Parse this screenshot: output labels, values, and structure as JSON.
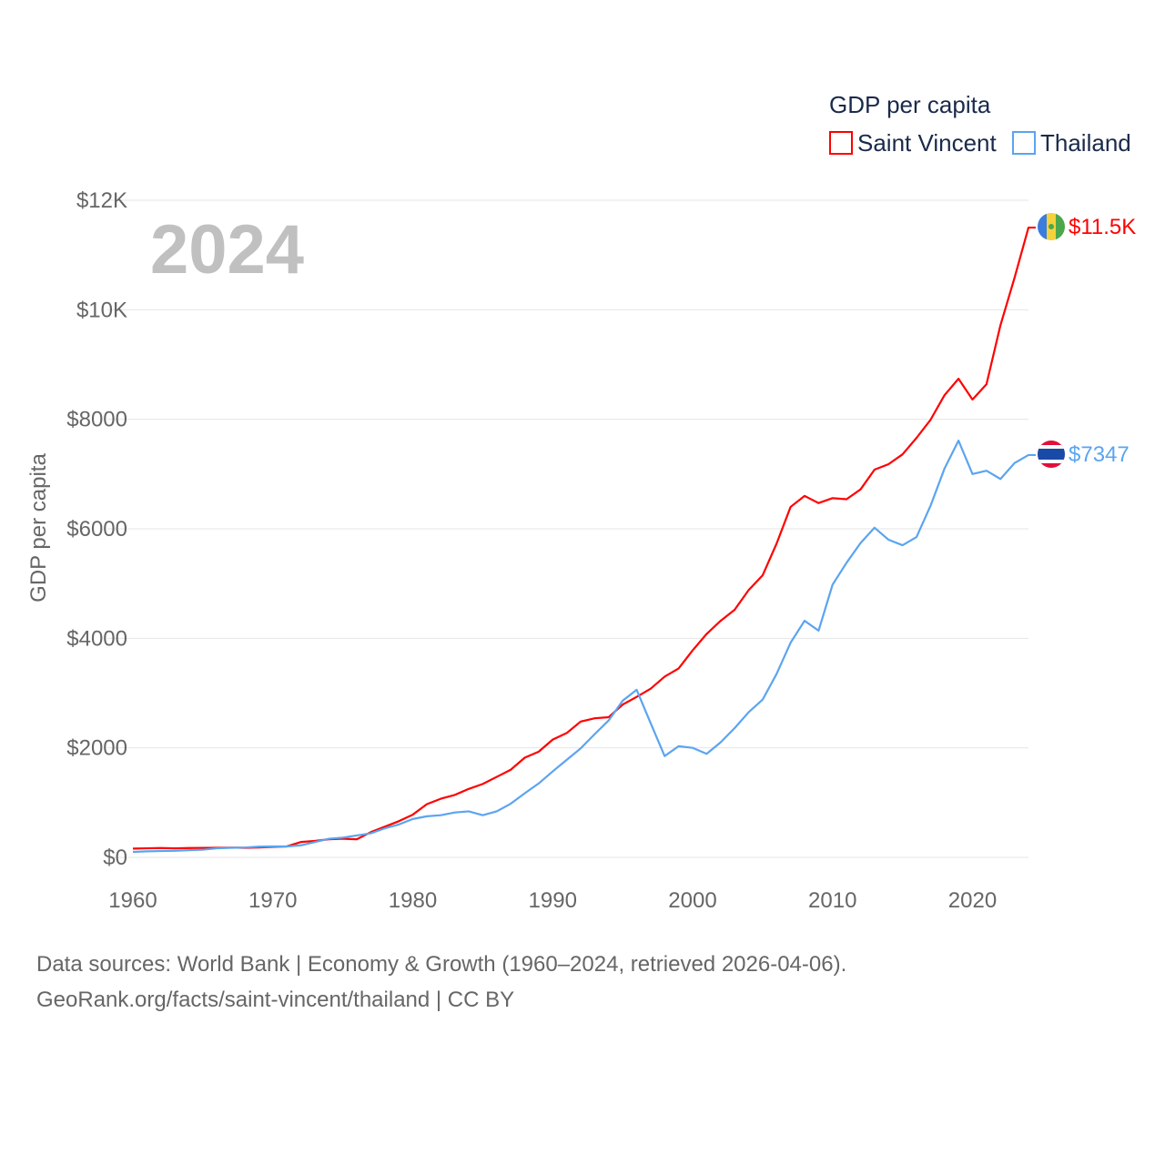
{
  "chart_data": {
    "type": "line",
    "title": "GDP per capita",
    "year_label": "2024",
    "xlabel": "",
    "ylabel": "GDP per capita",
    "xlim": [
      1960,
      2024
    ],
    "ylim": [
      0,
      12000
    ],
    "x_ticks": [
      1960,
      1970,
      1980,
      1990,
      2000,
      2010,
      2020
    ],
    "x_tick_labels": [
      "1960",
      "1970",
      "1980",
      "1990",
      "2000",
      "2010",
      "2020"
    ],
    "y_ticks": [
      0,
      2000,
      4000,
      6000,
      8000,
      10000,
      12000
    ],
    "y_tick_labels": [
      "$0",
      "$2000",
      "$4000",
      "$6000",
      "$8000",
      "$10K",
      "$12K"
    ],
    "grid": true,
    "legend_position": "top-right",
    "x": [
      1960,
      1961,
      1962,
      1963,
      1964,
      1965,
      1966,
      1967,
      1968,
      1969,
      1970,
      1971,
      1972,
      1973,
      1974,
      1975,
      1976,
      1977,
      1978,
      1979,
      1980,
      1981,
      1982,
      1983,
      1984,
      1985,
      1986,
      1987,
      1988,
      1989,
      1990,
      1991,
      1992,
      1993,
      1994,
      1995,
      1996,
      1997,
      1998,
      1999,
      2000,
      2001,
      2002,
      2003,
      2004,
      2005,
      2006,
      2007,
      2008,
      2009,
      2010,
      2011,
      2012,
      2013,
      2014,
      2015,
      2016,
      2017,
      2018,
      2019,
      2020,
      2021,
      2022,
      2023,
      2024
    ],
    "series": [
      {
        "name": "Saint Vincent",
        "color": "#ff0000",
        "end_label": "$11.5K",
        "values": [
          160,
          165,
          170,
          165,
          170,
          172,
          175,
          178,
          175,
          180,
          190,
          200,
          280,
          300,
          330,
          340,
          330,
          460,
          560,
          660,
          780,
          970,
          1070,
          1140,
          1250,
          1340,
          1470,
          1600,
          1820,
          1930,
          2150,
          2270,
          2480,
          2540,
          2560,
          2790,
          2930,
          3080,
          3300,
          3450,
          3780,
          4080,
          4320,
          4520,
          4880,
          5150,
          5730,
          6400,
          6600,
          6470,
          6560,
          6540,
          6720,
          7080,
          7180,
          7360,
          7660,
          7990,
          8440,
          8740,
          8360,
          8640,
          9720,
          10580,
          11500
        ]
      },
      {
        "name": "Thailand",
        "color": "#5ba4f0",
        "end_label": "$7347",
        "values": [
          100,
          110,
          115,
          120,
          130,
          140,
          165,
          175,
          180,
          195,
          200,
          200,
          220,
          280,
          340,
          360,
          400,
          440,
          530,
          600,
          700,
          750,
          770,
          820,
          840,
          770,
          840,
          980,
          1170,
          1350,
          1570,
          1780,
          1990,
          2250,
          2500,
          2860,
          3060,
          2450,
          1850,
          2030,
          2000,
          1890,
          2100,
          2360,
          2650,
          2880,
          3350,
          3920,
          4320,
          4140,
          4980,
          5380,
          5740,
          6020,
          5800,
          5700,
          5850,
          6420,
          7100,
          7610,
          7000,
          7060,
          6910,
          7200,
          7347
        ]
      }
    ]
  },
  "footer": {
    "line1": "Data sources: World Bank | Economy & Growth (1960–2024, retrieved 2026-04-06).",
    "line2": "GeoRank.org/facts/saint-vincent/thailand | CC BY"
  }
}
